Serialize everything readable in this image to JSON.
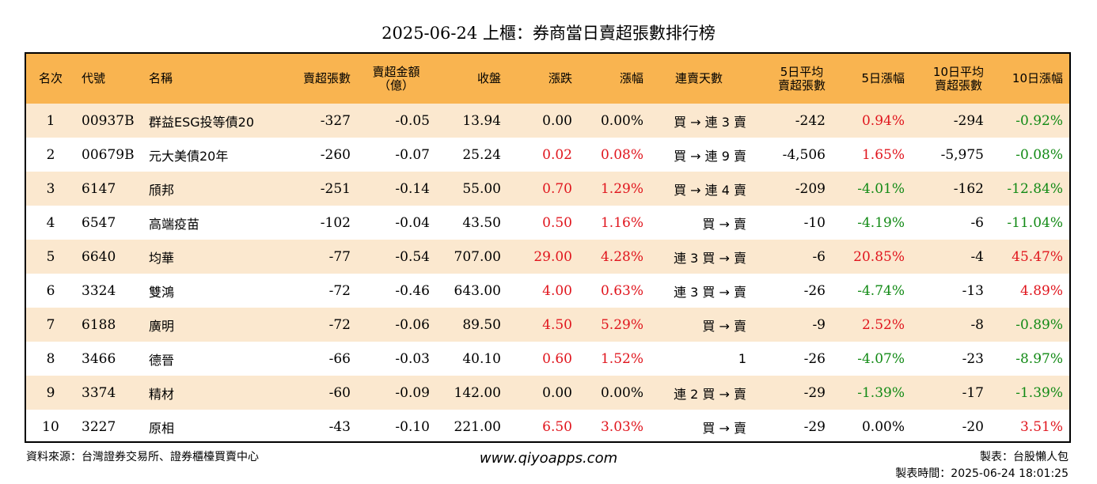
{
  "title": "2025-06-24 上櫃：券商當日賣超張數排行榜",
  "headers": [
    "名次",
    "代號",
    "名稱",
    "賣超張數",
    "賣超金額\n（億）",
    "收盤",
    "漲跌",
    "漲幅",
    "連賣天數",
    "5日平均\n賣超張數",
    "5日漲幅",
    "10日平均\n賣超張數",
    "10日漲幅"
  ],
  "colors": {
    "header_bg": "#f9b450",
    "odd_row_bg": "#fbe8cf",
    "up": "#e0151d",
    "down": "#128a15"
  },
  "rows": [
    {
      "rank": "1",
      "code": "00937B",
      "name": "群益ESG投等債20",
      "sell_lots": "-327",
      "amount": "-0.05",
      "close": "13.94",
      "change": "0.00",
      "change_pct": "0.00%",
      "streak": "買 → 連 3 賣",
      "avg5": "-242",
      "pct5": "0.94%",
      "avg10": "-294",
      "pct10": "-0.92%",
      "change_color": "",
      "pct_color": "",
      "pct5_color": "red",
      "pct10_color": "green"
    },
    {
      "rank": "2",
      "code": "00679B",
      "name": "元大美債20年",
      "sell_lots": "-260",
      "amount": "-0.07",
      "close": "25.24",
      "change": "0.02",
      "change_pct": "0.08%",
      "streak": "買 → 連 9 賣",
      "avg5": "-4,506",
      "pct5": "1.65%",
      "avg10": "-5,975",
      "pct10": "-0.08%",
      "change_color": "red",
      "pct_color": "red",
      "pct5_color": "red",
      "pct10_color": "green"
    },
    {
      "rank": "3",
      "code": "6147",
      "name": "頎邦",
      "sell_lots": "-251",
      "amount": "-0.14",
      "close": "55.00",
      "change": "0.70",
      "change_pct": "1.29%",
      "streak": "買 → 連 4 賣",
      "avg5": "-209",
      "pct5": "-4.01%",
      "avg10": "-162",
      "pct10": "-12.84%",
      "change_color": "red",
      "pct_color": "red",
      "pct5_color": "green",
      "pct10_color": "green"
    },
    {
      "rank": "4",
      "code": "6547",
      "name": "高端疫苗",
      "sell_lots": "-102",
      "amount": "-0.04",
      "close": "43.50",
      "change": "0.50",
      "change_pct": "1.16%",
      "streak": "買 → 賣",
      "avg5": "-10",
      "pct5": "-4.19%",
      "avg10": "-6",
      "pct10": "-11.04%",
      "change_color": "red",
      "pct_color": "red",
      "pct5_color": "green",
      "pct10_color": "green"
    },
    {
      "rank": "5",
      "code": "6640",
      "name": "均華",
      "sell_lots": "-77",
      "amount": "-0.54",
      "close": "707.00",
      "change": "29.00",
      "change_pct": "4.28%",
      "streak": "連 3 買 → 賣",
      "avg5": "-6",
      "pct5": "20.85%",
      "avg10": "-4",
      "pct10": "45.47%",
      "change_color": "red",
      "pct_color": "red",
      "pct5_color": "red",
      "pct10_color": "red"
    },
    {
      "rank": "6",
      "code": "3324",
      "name": "雙鴻",
      "sell_lots": "-72",
      "amount": "-0.46",
      "close": "643.00",
      "change": "4.00",
      "change_pct": "0.63%",
      "streak": "連 3 買 → 賣",
      "avg5": "-26",
      "pct5": "-4.74%",
      "avg10": "-13",
      "pct10": "4.89%",
      "change_color": "red",
      "pct_color": "red",
      "pct5_color": "green",
      "pct10_color": "red"
    },
    {
      "rank": "7",
      "code": "6188",
      "name": "廣明",
      "sell_lots": "-72",
      "amount": "-0.06",
      "close": "89.50",
      "change": "4.50",
      "change_pct": "5.29%",
      "streak": "買 → 賣",
      "avg5": "-9",
      "pct5": "2.52%",
      "avg10": "-8",
      "pct10": "-0.89%",
      "change_color": "red",
      "pct_color": "red",
      "pct5_color": "red",
      "pct10_color": "green"
    },
    {
      "rank": "8",
      "code": "3466",
      "name": "德晉",
      "sell_lots": "-66",
      "amount": "-0.03",
      "close": "40.10",
      "change": "0.60",
      "change_pct": "1.52%",
      "streak": "1",
      "avg5": "-26",
      "pct5": "-4.07%",
      "avg10": "-23",
      "pct10": "-8.97%",
      "change_color": "red",
      "pct_color": "red",
      "pct5_color": "green",
      "pct10_color": "green"
    },
    {
      "rank": "9",
      "code": "3374",
      "name": "精材",
      "sell_lots": "-60",
      "amount": "-0.09",
      "close": "142.00",
      "change": "0.00",
      "change_pct": "0.00%",
      "streak": "連 2 買 → 賣",
      "avg5": "-29",
      "pct5": "-1.39%",
      "avg10": "-17",
      "pct10": "-1.39%",
      "change_color": "",
      "pct_color": "",
      "pct5_color": "green",
      "pct10_color": "green"
    },
    {
      "rank": "10",
      "code": "3227",
      "name": "原相",
      "sell_lots": "-43",
      "amount": "-0.10",
      "close": "221.00",
      "change": "6.50",
      "change_pct": "3.03%",
      "streak": "買 → 賣",
      "avg5": "-29",
      "pct5": "0.00%",
      "avg10": "-20",
      "pct10": "3.51%",
      "change_color": "red",
      "pct_color": "red",
      "pct5_color": "",
      "pct10_color": "red"
    }
  ],
  "footer": {
    "source": "資料來源：台灣證券交易所、證券櫃檯買賣中心",
    "url": "www.qiyoapps.com",
    "maker": "製表：台股懶人包",
    "time": "製表時間：2025-06-24 18:01:25"
  }
}
